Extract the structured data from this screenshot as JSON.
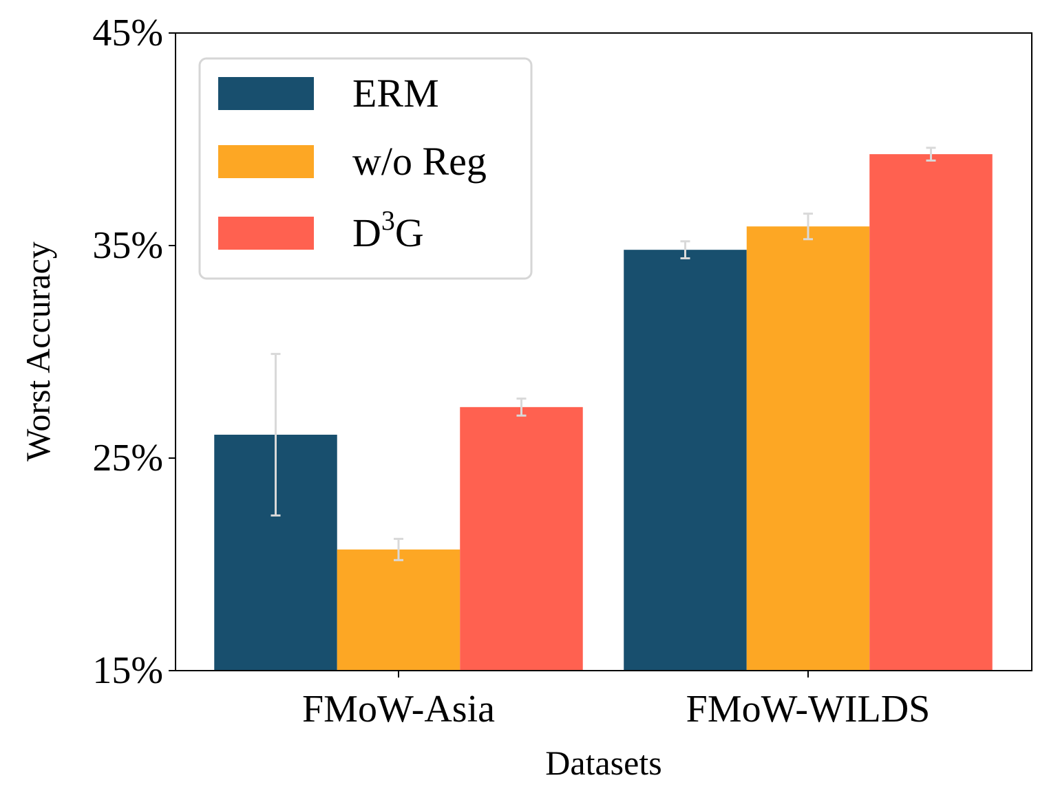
{
  "chart_data": {
    "type": "bar",
    "title": "",
    "xlabel": "Datasets",
    "ylabel": "Worst Accuracy",
    "categories": [
      "FMoW-Asia",
      "FMoW-WILDS"
    ],
    "ylim": [
      15,
      45
    ],
    "yticks": [
      15,
      25,
      35,
      45
    ],
    "ytick_labels": [
      "15%",
      "25%",
      "35%",
      "45%"
    ],
    "series": [
      {
        "name": "ERM",
        "legend_main": "ERM",
        "legend_sup": "",
        "legend_tail": "",
        "color": "#184f6e",
        "values": [
          26.1,
          34.8
        ],
        "errors": [
          3.8,
          0.4
        ]
      },
      {
        "name": "w/o Reg",
        "legend_main": "w/o Reg",
        "legend_sup": "",
        "legend_tail": "",
        "color": "#fda724",
        "values": [
          20.7,
          35.9
        ],
        "errors": [
          0.5,
          0.6
        ]
      },
      {
        "name": "D3G",
        "legend_main": "D",
        "legend_sup": "3",
        "legend_tail": "G",
        "color": "#ff6150",
        "values": [
          27.4,
          39.3
        ],
        "errors": [
          0.4,
          0.3
        ]
      }
    ],
    "grid": false,
    "legend_position": "top-left",
    "error_bar_color": "#d9d9d9"
  }
}
